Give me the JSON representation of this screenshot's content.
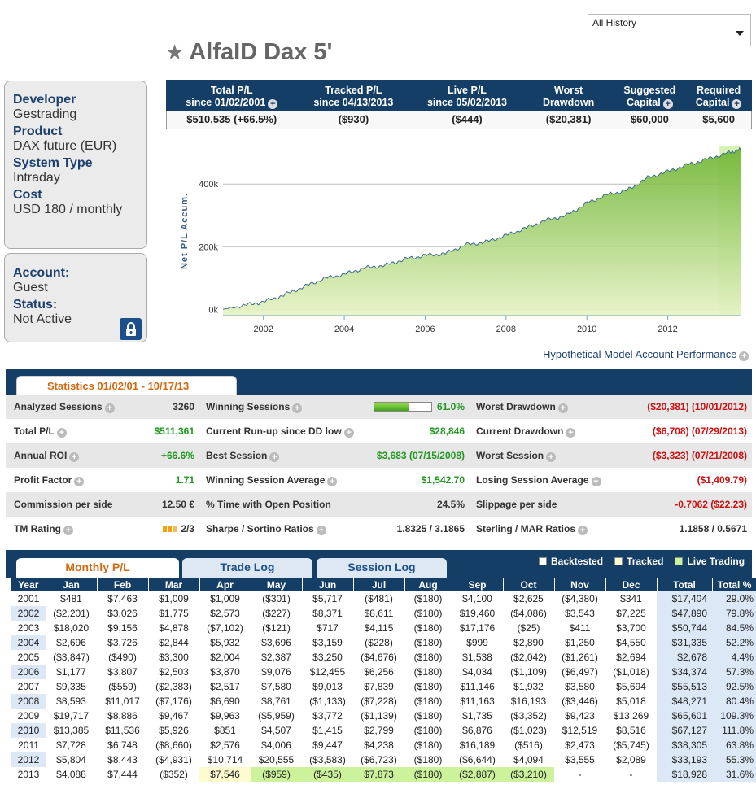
{
  "history_select": {
    "value": "All History"
  },
  "title": "AlfaID Dax 5'",
  "developer_panel": {
    "developer_label": "Developer",
    "developer": "Gestrading",
    "product_label": "Product",
    "product": "DAX future (EUR)",
    "system_type_label": "System Type",
    "system_type": "Intraday",
    "cost_label": "Cost",
    "cost": "USD 180 / monthly"
  },
  "account_panel": {
    "account_label": "Account:",
    "account": "Guest",
    "status_label": "Status:",
    "status": "Not Active"
  },
  "summary": {
    "headers": [
      {
        "line1": "Total P/L",
        "line2": "since 01/02/2001"
      },
      {
        "line1": "Tracked P/L",
        "line2": "since 04/13/2013"
      },
      {
        "line1": "Live P/L",
        "line2": "since 05/02/2013"
      },
      {
        "line1": "Worst",
        "line2": "Drawdown"
      },
      {
        "line1": "Suggested",
        "line2": "Capital"
      },
      {
        "line1": "Required",
        "line2": "Capital"
      }
    ],
    "values": [
      "$510,535 (+66.5%)",
      "($930)",
      "($444)",
      "($20,381)",
      "$60,000",
      "$5,600"
    ]
  },
  "chart_data": {
    "type": "area",
    "ylabel": "Net P/L Accum.",
    "y_ticks": [
      "0k",
      "200k",
      "400k"
    ],
    "x_ticks": [
      "2002",
      "2004",
      "2006",
      "2008",
      "2010",
      "2012"
    ],
    "ylim": [
      -20000,
      520000
    ],
    "xlim": [
      2001.0,
      2013.8
    ],
    "x": [
      2001.0,
      2001.5,
      2002.0,
      2002.5,
      2003.0,
      2003.5,
      2004.0,
      2004.5,
      2005.0,
      2005.5,
      2006.0,
      2006.5,
      2007.0,
      2007.5,
      2008.0,
      2008.5,
      2009.0,
      2009.5,
      2010.0,
      2010.5,
      2011.0,
      2011.5,
      2012.0,
      2012.5,
      2013.0,
      2013.5,
      2013.8
    ],
    "y": [
      0,
      12000,
      24000,
      45000,
      72000,
      98000,
      112000,
      132000,
      140000,
      160000,
      172000,
      178000,
      206000,
      215000,
      236000,
      260000,
      285000,
      300000,
      339000,
      366000,
      380000,
      420000,
      440000,
      462000,
      480000,
      500000,
      510000
    ],
    "highlight_regions": [
      {
        "from": 2013.28,
        "to": 2013.8,
        "kind": "tracked-live"
      }
    ],
    "colors": {
      "fill_top": "#6bb32e",
      "fill_bottom": "#e6f3c5",
      "line": "#3f6a8e",
      "live": "#c8ee9a"
    }
  },
  "hypothetical_label": "Hypothetical Model Account Performance",
  "statistics": {
    "tab_label": "Statistics  01/02/01 - 10/17/13",
    "rows": [
      [
        {
          "l": "Analyzed Sessions",
          "v": "3260",
          "c": "dark"
        },
        {
          "l": "Winning Sessions",
          "v": "61.0%",
          "c": "green",
          "bar": 0.61
        },
        {
          "l": "Worst Drawdown",
          "v": "($20,381) (10/01/2012)",
          "c": "red"
        }
      ],
      [
        {
          "l": "Total P/L",
          "v": "$511,361",
          "c": "green"
        },
        {
          "l": "Current Run-up since DD low",
          "v": "$28,846",
          "c": "green"
        },
        {
          "l": "Current Drawdown",
          "v": "($6,708) (07/29/2013)",
          "c": "red"
        }
      ],
      [
        {
          "l": "Annual ROI",
          "v": "+66.6%",
          "c": "green"
        },
        {
          "l": "Best Session",
          "v": "$3,683 (07/15/2008)",
          "c": "green"
        },
        {
          "l": "Worst Session",
          "v": "($3,323) (07/21/2008)",
          "c": "red"
        }
      ],
      [
        {
          "l": "Profit Factor",
          "v": "1.71",
          "c": "green"
        },
        {
          "l": "Winning Session Average",
          "v": "$1,542.70",
          "c": "green"
        },
        {
          "l": "Losing Session Average",
          "v": "($1,409.79)",
          "c": "red"
        }
      ],
      [
        {
          "l": "Commission per side",
          "v": "12.50 €",
          "c": "dark"
        },
        {
          "l": "% Time with Open Position",
          "v": "24.5%",
          "c": "dark"
        },
        {
          "l": "Slippage per side",
          "v": "-0.7062 ($22.23)",
          "c": "red"
        }
      ],
      [
        {
          "l": "TM Rating",
          "v": "2/3",
          "c": "dark",
          "rating": true
        },
        {
          "l": "Sharpe / Sortino Ratios",
          "v": "1.8325 / 3.1865",
          "c": "dark"
        },
        {
          "l": "Sterling / MAR Ratios",
          "v": "1.1858 / 0.5671",
          "c": "dark"
        }
      ]
    ]
  },
  "tabs": {
    "monthly": "Monthly P/L",
    "trade": "Trade Log",
    "session": "Session Log"
  },
  "legend": {
    "backtested": "Backtested",
    "tracked": "Tracked",
    "live": "Live Trading",
    "colors": {
      "backtested": "#ffffff",
      "tracked": "#fdfcd0",
      "live": "#cdf29c"
    }
  },
  "monthly": {
    "headers": [
      "Year",
      "Jan",
      "Feb",
      "Mar",
      "Apr",
      "May",
      "Jun",
      "Jul",
      "Aug",
      "Sep",
      "Oct",
      "Nov",
      "Dec",
      "Total",
      "Total %"
    ],
    "rows": [
      [
        "2001",
        "$481",
        "$7,463",
        "$1,009",
        "$1,009",
        "($301)",
        "$5,717",
        "($481)",
        "($180)",
        "$4,100",
        "$2,625",
        "($4,380)",
        "$341",
        "$17,404",
        "29.0%"
      ],
      [
        "2002",
        "($2,201)",
        "$3,026",
        "$1,775",
        "$2,573",
        "($227)",
        "$8,371",
        "$8,611",
        "($180)",
        "$19,460",
        "($4,086)",
        "$3,543",
        "$7,225",
        "$47,890",
        "79.8%"
      ],
      [
        "2003",
        "$18,020",
        "$9,156",
        "$4,878",
        "($7,102)",
        "($121)",
        "$717",
        "$4,115",
        "($180)",
        "$17,176",
        "($25)",
        "$411",
        "$3,700",
        "$50,744",
        "84.5%"
      ],
      [
        "2004",
        "$2,696",
        "$3,726",
        "$2,844",
        "$5,932",
        "$3,696",
        "$3,159",
        "($228)",
        "($180)",
        "$999",
        "$2,890",
        "$1,250",
        "$4,550",
        "$31,335",
        "52.2%"
      ],
      [
        "2005",
        "($3,847)",
        "($490)",
        "$3,300",
        "$2,004",
        "$2,387",
        "$3,250",
        "($4,676)",
        "($180)",
        "$1,538",
        "($2,042)",
        "($1,261)",
        "$2,694",
        "$2,678",
        "4.4%"
      ],
      [
        "2006",
        "$1,177",
        "$3,807",
        "$2,503",
        "$3,870",
        "$9,076",
        "$12,455",
        "$6,256",
        "($180)",
        "$4,034",
        "($1,109)",
        "($6,497)",
        "($1,018)",
        "$34,374",
        "57.3%"
      ],
      [
        "2007",
        "$9,335",
        "($559)",
        "($2,383)",
        "$2,517",
        "$7,580",
        "$9,013",
        "$7,839",
        "($180)",
        "$11,146",
        "$1,932",
        "$3,580",
        "$5,694",
        "$55,513",
        "92.5%"
      ],
      [
        "2008",
        "$8,593",
        "$11,017",
        "($7,176)",
        "$6,690",
        "$8,761",
        "($1,133)",
        "($7,228)",
        "($180)",
        "$11,163",
        "$16,193",
        "($3,446)",
        "$5,018",
        "$48,271",
        "80.4%"
      ],
      [
        "2009",
        "$19,717",
        "$8,886",
        "$9,467",
        "$9,963",
        "($5,959)",
        "$3,772",
        "($1,139)",
        "($180)",
        "$1,735",
        "($3,352)",
        "$9,423",
        "$13,269",
        "$65,601",
        "109.3%"
      ],
      [
        "2010",
        "$13,385",
        "$11,536",
        "$5,926",
        "$851",
        "$4,507",
        "$1,415",
        "$2,799",
        "($180)",
        "$6,876",
        "($1,023)",
        "$12,519",
        "$8,516",
        "$67,127",
        "111.8%"
      ],
      [
        "2011",
        "$7,728",
        "$6,748",
        "($8,660)",
        "$2,576",
        "$4,006",
        "$9,447",
        "$4,238",
        "($180)",
        "$16,189",
        "($516)",
        "$2,473",
        "($5,745)",
        "$38,305",
        "63.8%"
      ],
      [
        "2012",
        "$5,804",
        "$8,443",
        "($4,931)",
        "$10,714",
        "$20,555",
        "($3,583)",
        "($6,723)",
        "($180)",
        "($6,644)",
        "$4,094",
        "$3,555",
        "$2,089",
        "$33,193",
        "55.3%"
      ],
      [
        "2013",
        "$4,088",
        "$7,444",
        "($352)",
        "$7,546",
        "($959)",
        "($435)",
        "$7,873",
        "($180)",
        "($2,887)",
        "($3,210)",
        "-",
        "-",
        "$18,928",
        "31.6%"
      ]
    ],
    "last_row_status": [
      "",
      "",
      "",
      "",
      "tracked",
      "live",
      "live",
      "live",
      "live",
      "live",
      "live",
      "",
      "",
      "",
      ""
    ]
  }
}
